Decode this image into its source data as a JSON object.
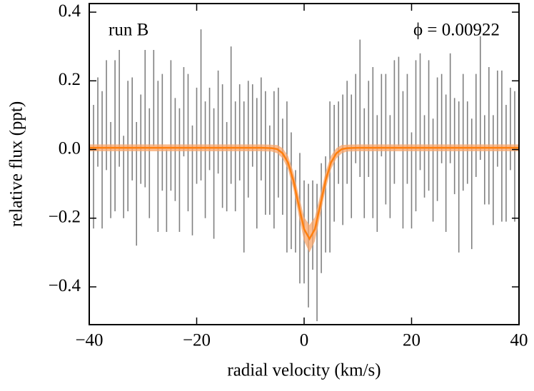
{
  "chart_data": {
    "type": "errorbar",
    "xlabel": "radial velocity (km/s)",
    "ylabel": "relative flux (ppt)",
    "annotations": [
      "run B",
      "ϕ = 0.00922"
    ],
    "xlim": [
      -40,
      40
    ],
    "ylim": [
      -0.51,
      0.425
    ],
    "xticks": [
      {
        "value": -40,
        "label": "−40"
      },
      {
        "value": -20,
        "label": "−20"
      },
      0,
      20,
      40
    ],
    "yticks": [
      {
        "value": -0.4,
        "label": "−0.4"
      },
      {
        "value": -0.2,
        "label": "−0.2"
      },
      {
        "value": 0,
        "label": "0.0"
      },
      0.2,
      0.4
    ],
    "data": {
      "color": "#808080",
      "x": [
        -40,
        -39.2,
        -38.4,
        -37.6,
        -36.8,
        -36,
        -35.2,
        -34.4,
        -33.6,
        -32.8,
        -32,
        -31.2,
        -30.4,
        -29.6,
        -28.8,
        -28,
        -27.2,
        -26.4,
        -25.6,
        -24.8,
        -24,
        -23.2,
        -22.4,
        -21.6,
        -20.8,
        -20,
        -19.2,
        -18.4,
        -17.6,
        -16.8,
        -16,
        -15.2,
        -14.4,
        -13.6,
        -12.8,
        -12,
        -11.2,
        -10.4,
        -9.6,
        -8.8,
        -8,
        -7.2,
        -6.4,
        -5.6,
        -4.8,
        -4,
        -3.2,
        -2.4,
        -1.6,
        -0.8,
        0,
        0.8,
        1.6,
        2.4,
        3.2,
        4,
        4.8,
        5.6,
        6.4,
        7.2,
        8,
        8.8,
        9.6,
        10.4,
        11.2,
        12,
        12.8,
        13.6,
        14.4,
        15.2,
        16,
        16.8,
        17.6,
        18.4,
        19.2,
        20,
        20.8,
        21.6,
        22.4,
        23.2,
        24,
        24.8,
        25.6,
        26.4,
        27.2,
        28,
        28.8,
        29.6,
        30.4,
        31.2,
        32,
        32.8,
        33.6,
        34.4,
        35.2,
        36,
        36.8,
        37.6,
        38.4,
        39.2,
        40
      ],
      "values": [
        0.02,
        -0.05,
        0.08,
        -0.03,
        0.1,
        -0.06,
        0.04,
        0.12,
        -0.08,
        0.01,
        0.06,
        -0.1,
        0.03,
        0.09,
        -0.04,
        0.15,
        -0.02,
        0.05,
        -0.12,
        0.07,
        0.0,
        -0.06,
        0.11,
        0.02,
        -0.09,
        0.04,
        0.13,
        -0.03,
        0.06,
        -0.07,
        0.08,
        0.01,
        -0.05,
        0.1,
        -0.02,
        0.05,
        -0.08,
        0.03,
        0.07,
        -0.04,
        0.06,
        -0.01,
        -0.06,
        -0.03,
        0.02,
        -0.05,
        -0.08,
        -0.12,
        -0.18,
        -0.2,
        -0.24,
        -0.28,
        -0.22,
        -0.3,
        -0.2,
        -0.16,
        -0.08,
        -0.04,
        0.02,
        -0.03,
        0.05,
        -0.02,
        0.09,
        0.12,
        -0.04,
        0.06,
        0.02,
        -0.07,
        0.1,
        0.03,
        -0.05,
        0.08,
        0.14,
        -0.03,
        0.06,
        -0.09,
        0.04,
        0.11,
        -0.02,
        0.07,
        -0.06,
        0.03,
        0.09,
        -0.04,
        0.12,
        0.01,
        -0.08,
        0.05,
        0.02,
        -0.1,
        0.07,
        0.15,
        -0.03,
        0.04,
        -0.06,
        0.09,
        0.01,
        -0.04,
        0.06,
        -0.02,
        0.03
      ],
      "errors": [
        0.15,
        0.18,
        0.13,
        0.2,
        0.16,
        0.14,
        0.22,
        0.17,
        0.12,
        0.19,
        0.15,
        0.18,
        0.13,
        0.2,
        0.16,
        0.14,
        0.22,
        0.17,
        0.12,
        0.19,
        0.15,
        0.18,
        0.13,
        0.2,
        0.16,
        0.14,
        0.22,
        0.17,
        0.12,
        0.19,
        0.15,
        0.18,
        0.13,
        0.2,
        0.16,
        0.14,
        0.22,
        0.17,
        0.12,
        0.19,
        0.15,
        0.18,
        0.13,
        0.2,
        0.16,
        0.14,
        0.22,
        0.17,
        0.12,
        0.19,
        0.15,
        0.18,
        0.13,
        0.2,
        0.16,
        0.14,
        0.22,
        0.17,
        0.12,
        0.19,
        0.15,
        0.18,
        0.13,
        0.2,
        0.16,
        0.14,
        0.22,
        0.17,
        0.12,
        0.19,
        0.15,
        0.18,
        0.13,
        0.2,
        0.16,
        0.14,
        0.22,
        0.17,
        0.12,
        0.19,
        0.15,
        0.18,
        0.13,
        0.2,
        0.16,
        0.14,
        0.22,
        0.17,
        0.12,
        0.19,
        0.15,
        0.18,
        0.13,
        0.2,
        0.16,
        0.14,
        0.22,
        0.17,
        0.12,
        0.19,
        0.16
      ]
    },
    "model": {
      "color": "#ff7f0e",
      "band_color": "#f9a66a",
      "x": [
        -40,
        -20,
        -8,
        -6,
        -5,
        -4,
        -3,
        -2,
        -1,
        0,
        1,
        2,
        3,
        4,
        5,
        6,
        7,
        8,
        10,
        20,
        40
      ],
      "values": [
        0.005,
        0.005,
        0.005,
        0.004,
        0.001,
        -0.011,
        -0.038,
        -0.09,
        -0.163,
        -0.232,
        -0.26,
        -0.232,
        -0.163,
        -0.09,
        -0.038,
        -0.011,
        0.001,
        0.004,
        0.005,
        0.005,
        0.005
      ],
      "lower": [
        -0.005,
        -0.005,
        -0.005,
        -0.006,
        -0.011,
        -0.026,
        -0.058,
        -0.115,
        -0.193,
        -0.267,
        -0.3,
        -0.267,
        -0.193,
        -0.115,
        -0.058,
        -0.026,
        -0.011,
        -0.006,
        -0.005,
        -0.005,
        -0.005
      ],
      "upper": [
        0.015,
        0.015,
        0.015,
        0.014,
        0.013,
        0.004,
        -0.018,
        -0.065,
        -0.133,
        -0.197,
        -0.22,
        -0.197,
        -0.133,
        -0.065,
        -0.018,
        0.004,
        0.013,
        0.014,
        0.015,
        0.015,
        0.015
      ]
    }
  }
}
